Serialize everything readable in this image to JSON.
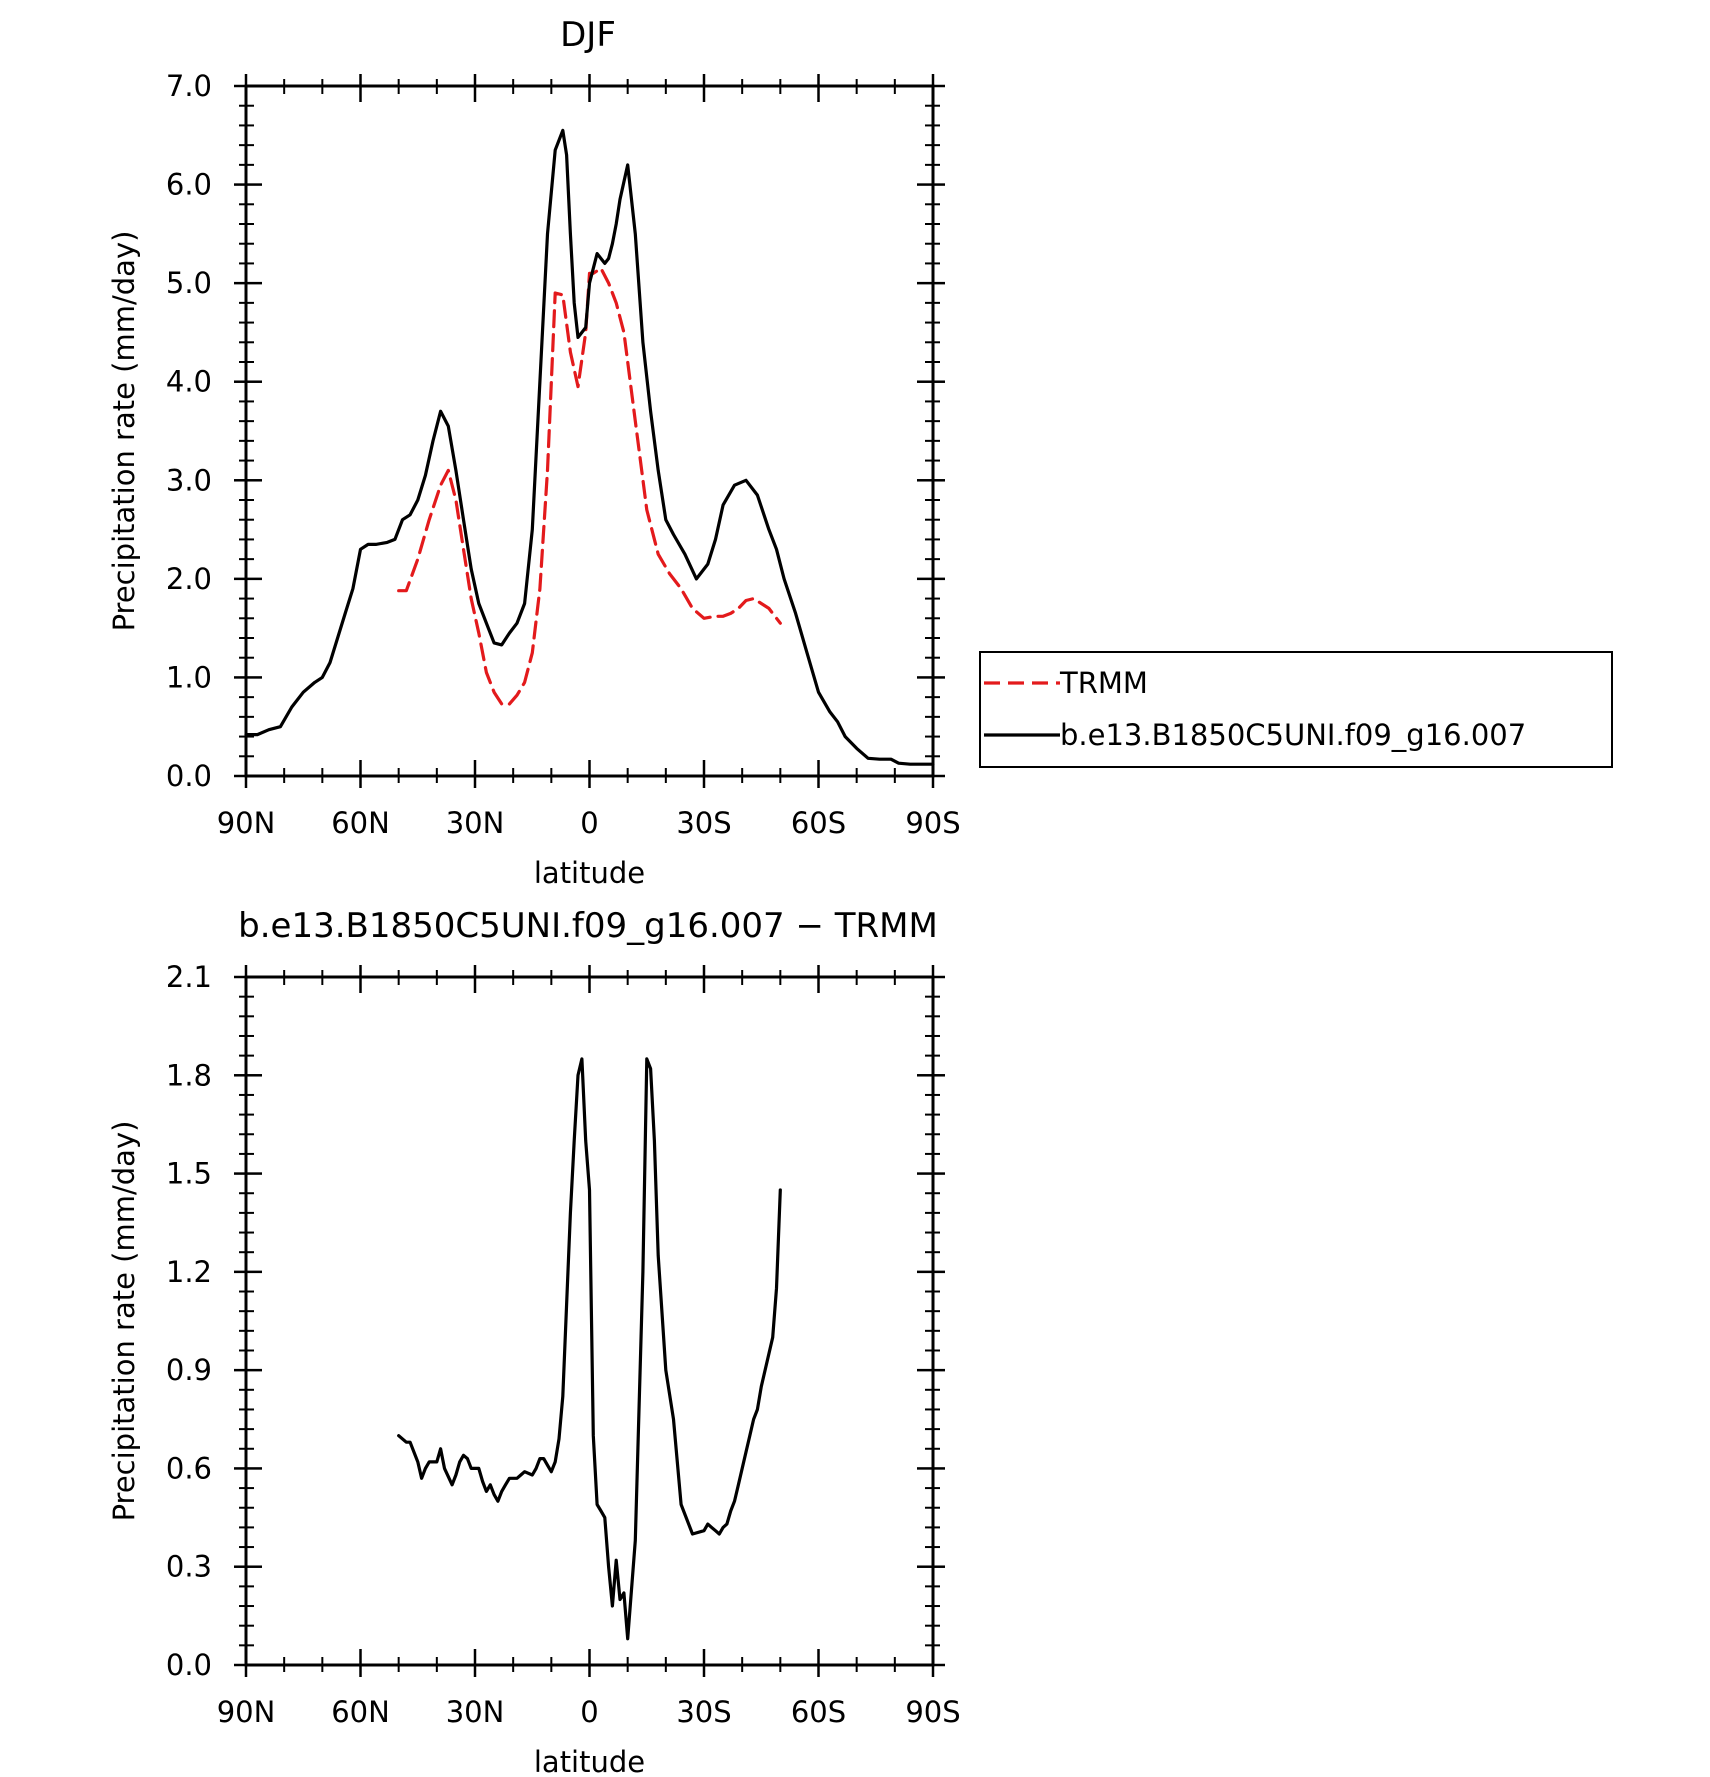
{
  "chart_data": [
    {
      "type": "line",
      "title": "DJF",
      "xlabel": "latitude",
      "ylabel": "Precipitation rate (mm/day)",
      "xlim": [
        90,
        -90
      ],
      "ylim": [
        0,
        7
      ],
      "x_ticks": [
        90,
        60,
        30,
        0,
        -30,
        -60,
        -90
      ],
      "x_tick_labels": [
        "90N",
        "60N",
        "30N",
        "0",
        "30S",
        "60S",
        "90S"
      ],
      "y_ticks": [
        0,
        1,
        2,
        3,
        4,
        5,
        6,
        7
      ],
      "y_tick_labels": [
        "0.0",
        "1.0",
        "2.0",
        "3.0",
        "4.0",
        "5.0",
        "6.0",
        "7.0"
      ],
      "grid": false,
      "legend_position": "right",
      "series": [
        {
          "name": "TRMM",
          "color": "#e31a1c",
          "dash": "dashed",
          "x": [
            50,
            48,
            45,
            42,
            39,
            37,
            35,
            33,
            31,
            29,
            27,
            25,
            23,
            21,
            19,
            17,
            15,
            13,
            11,
            9,
            7,
            5,
            3,
            1,
            0,
            -1,
            -3,
            -5,
            -7,
            -9,
            -12,
            -15,
            -18,
            -21,
            -24,
            -27,
            -30,
            -33,
            -35,
            -37,
            -39,
            -41,
            -43,
            -45,
            -47,
            -49,
            -50
          ],
          "y": [
            1.88,
            1.88,
            2.2,
            2.6,
            2.95,
            3.1,
            2.8,
            2.3,
            1.8,
            1.45,
            1.05,
            0.85,
            0.73,
            0.73,
            0.82,
            0.95,
            1.25,
            1.9,
            3.1,
            4.9,
            4.88,
            4.3,
            3.95,
            4.5,
            5.1,
            5.1,
            5.15,
            5.0,
            4.8,
            4.5,
            3.6,
            2.7,
            2.25,
            2.05,
            1.9,
            1.7,
            1.6,
            1.62,
            1.62,
            1.65,
            1.7,
            1.78,
            1.8,
            1.75,
            1.7,
            1.6,
            1.55
          ]
        },
        {
          "name": "b.e13.B1850C5UNI.f09_g16.007",
          "color": "#000000",
          "dash": "solid",
          "x": [
            90,
            87,
            84,
            81,
            78,
            75,
            72,
            70,
            68,
            66,
            64,
            62,
            60,
            58,
            56,
            53,
            51,
            49,
            47,
            45,
            43,
            41,
            39,
            37,
            35,
            33,
            31,
            29,
            27,
            25,
            23,
            21,
            19,
            17,
            15,
            13,
            11,
            9,
            7,
            6,
            5,
            4,
            3,
            1,
            0,
            -2,
            -4,
            -5,
            -6,
            -7,
            -8,
            -10,
            -12,
            -14,
            -16,
            -18,
            -20,
            -22,
            -25,
            -28,
            -31,
            -33,
            -35,
            -38,
            -41,
            -44,
            -47,
            -49,
            -51,
            -54,
            -57,
            -60,
            -63,
            -65,
            -67,
            -70,
            -73,
            -76,
            -79,
            -81,
            -84,
            -87,
            -90
          ],
          "y": [
            0.42,
            0.42,
            0.47,
            0.5,
            0.7,
            0.85,
            0.95,
            1.0,
            1.15,
            1.4,
            1.65,
            1.9,
            2.3,
            2.35,
            2.35,
            2.37,
            2.4,
            2.6,
            2.65,
            2.8,
            3.05,
            3.4,
            3.7,
            3.55,
            3.1,
            2.6,
            2.1,
            1.75,
            1.55,
            1.35,
            1.33,
            1.45,
            1.55,
            1.75,
            2.5,
            4.0,
            5.5,
            6.35,
            6.55,
            6.3,
            5.5,
            4.8,
            4.45,
            4.55,
            5.0,
            5.3,
            5.2,
            5.25,
            5.4,
            5.6,
            5.85,
            6.2,
            5.5,
            4.4,
            3.7,
            3.1,
            2.6,
            2.45,
            2.25,
            2.0,
            2.15,
            2.4,
            2.75,
            2.95,
            3.0,
            2.85,
            2.5,
            2.3,
            2.0,
            1.65,
            1.25,
            0.85,
            0.65,
            0.55,
            0.4,
            0.28,
            0.18,
            0.17,
            0.17,
            0.13,
            0.12,
            0.12,
            0.12
          ]
        }
      ]
    },
    {
      "type": "line",
      "title": "b.e13.B1850C5UNI.f09_g16.007 − TRMM",
      "xlabel": "latitude",
      "ylabel": "Precipitation rate (mm/day)",
      "xlim": [
        90,
        -90
      ],
      "ylim": [
        0,
        2.1
      ],
      "x_ticks": [
        90,
        60,
        30,
        0,
        -30,
        -60,
        -90
      ],
      "x_tick_labels": [
        "90N",
        "60N",
        "30N",
        "0",
        "30S",
        "60S",
        "90S"
      ],
      "y_ticks": [
        0,
        0.3,
        0.6,
        0.9,
        1.2,
        1.5,
        1.8,
        2.1
      ],
      "y_tick_labels": [
        "0.0",
        "0.3",
        "0.6",
        "0.9",
        "1.2",
        "1.5",
        "1.8",
        "2.1"
      ],
      "grid": false,
      "series": [
        {
          "color": "#000000",
          "dash": "solid",
          "x": [
            50,
            48,
            47,
            45,
            44,
            43,
            42,
            40,
            39,
            38,
            36,
            35,
            34,
            33,
            32,
            31,
            30,
            29,
            28,
            27,
            26,
            25,
            24,
            23,
            22,
            21,
            20,
            19,
            18,
            17,
            15,
            14,
            13,
            12,
            11,
            10,
            9,
            8,
            7,
            6,
            5,
            4,
            3,
            2,
            1,
            0,
            -1,
            -2,
            -3,
            -4,
            -5,
            -6,
            -7,
            -8,
            -9,
            -10,
            -12,
            -14,
            -15,
            -16,
            -17,
            -18,
            -20,
            -22,
            -24,
            -27,
            -30,
            -31,
            -32,
            -33,
            -34,
            -35,
            -36,
            -37,
            -38,
            -39,
            -40,
            -41,
            -42,
            -43,
            -44,
            -45,
            -46,
            -47,
            -48,
            -49,
            -50
          ],
          "y": [
            0.7,
            0.68,
            0.68,
            0.62,
            0.57,
            0.6,
            0.62,
            0.62,
            0.66,
            0.6,
            0.55,
            0.58,
            0.62,
            0.64,
            0.63,
            0.6,
            0.6,
            0.6,
            0.56,
            0.53,
            0.55,
            0.52,
            0.5,
            0.53,
            0.55,
            0.57,
            0.57,
            0.57,
            0.58,
            0.59,
            0.58,
            0.6,
            0.63,
            0.63,
            0.61,
            0.59,
            0.62,
            0.69,
            0.82,
            1.1,
            1.38,
            1.6,
            1.8,
            1.85,
            1.6,
            1.45,
            0.7,
            0.49,
            0.47,
            0.45,
            0.3,
            0.18,
            0.32,
            0.2,
            0.22,
            0.08,
            0.38,
            1.2,
            1.85,
            1.82,
            1.6,
            1.25,
            0.9,
            0.75,
            0.49,
            0.4,
            0.41,
            0.43,
            0.42,
            0.41,
            0.4,
            0.42,
            0.43,
            0.47,
            0.5,
            0.55,
            0.6,
            0.65,
            0.7,
            0.75,
            0.78,
            0.85,
            0.9,
            0.95,
            1.0,
            1.15,
            1.45
          ]
        }
      ]
    }
  ]
}
